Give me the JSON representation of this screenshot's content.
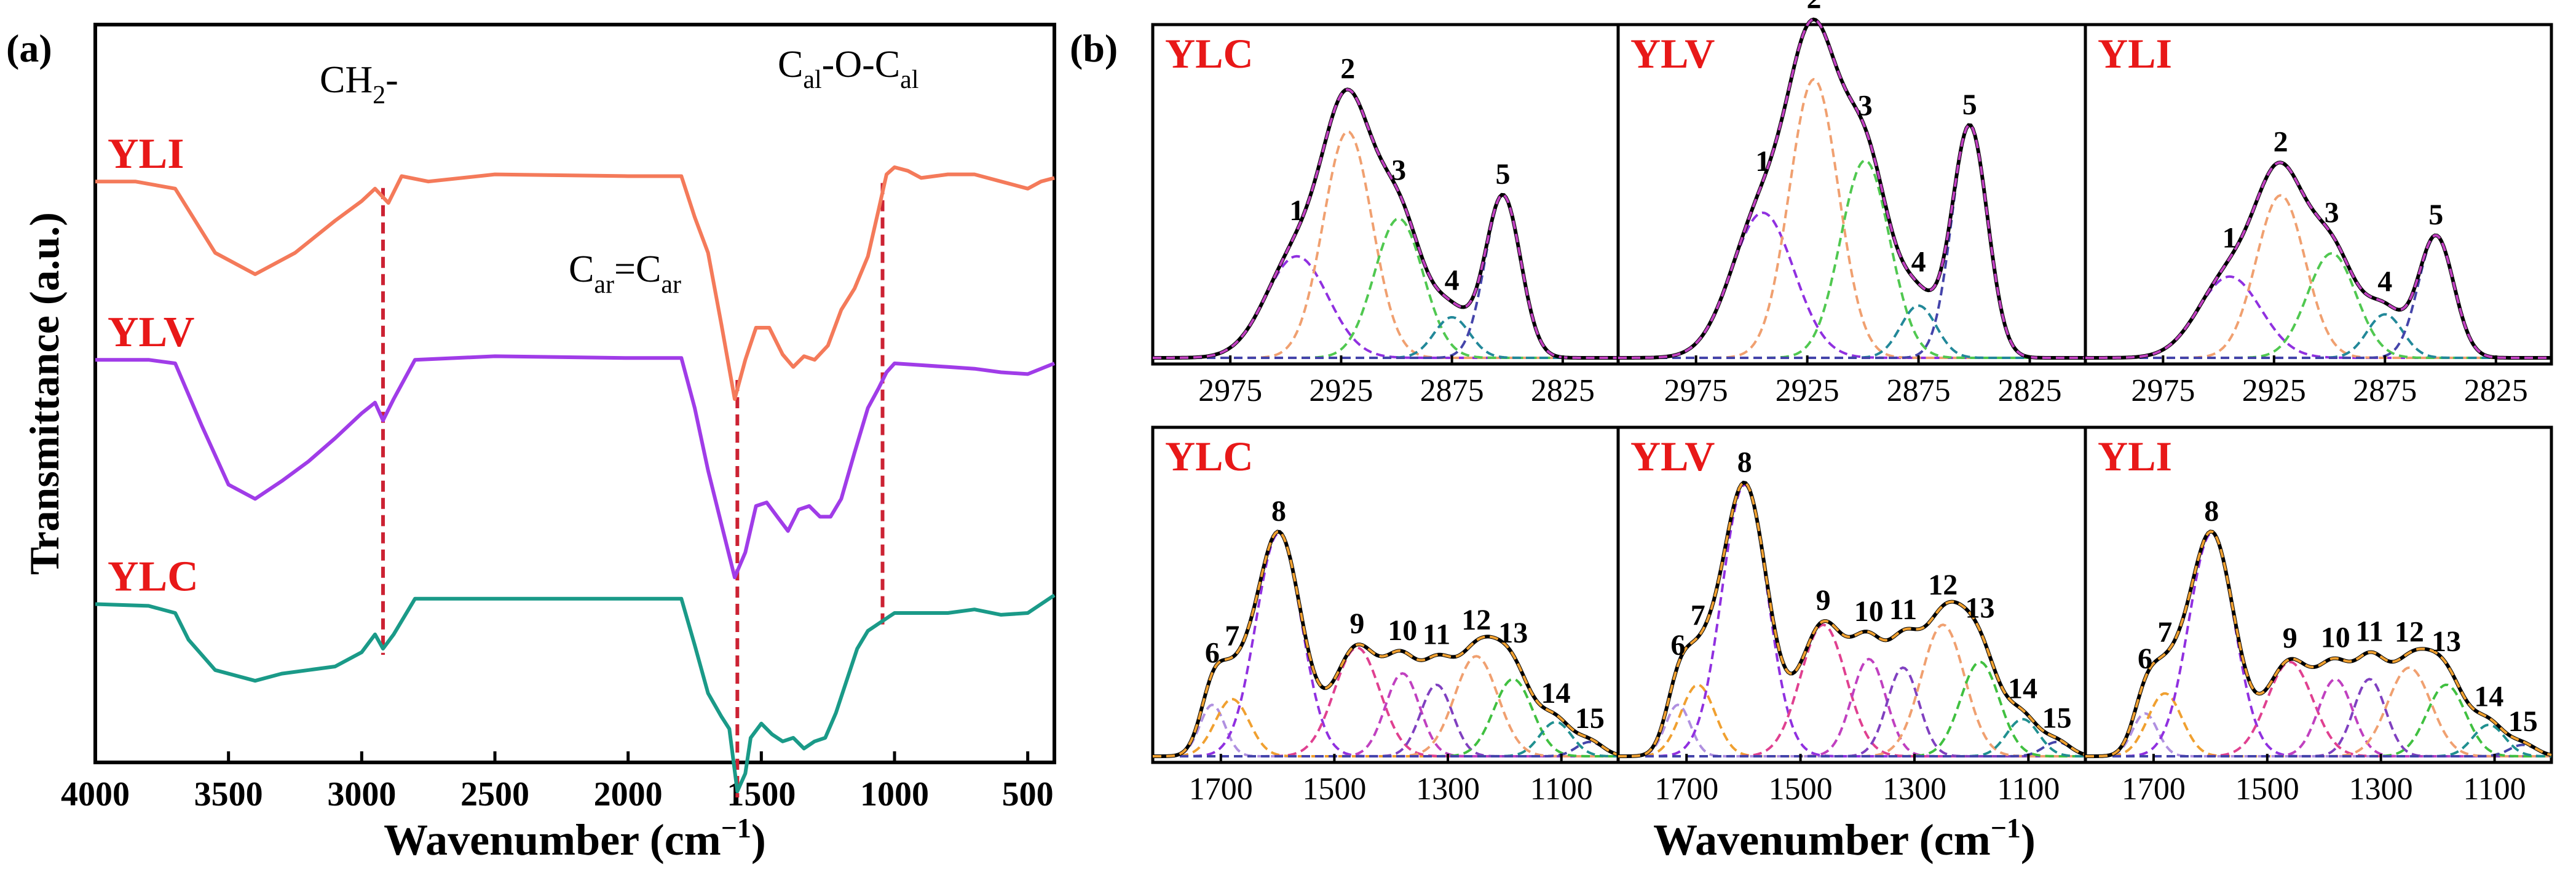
{
  "chart_data": [
    {
      "panel": "(a)",
      "type": "line",
      "xlabel_main": "Wavenumber (cm",
      "xlabel_sup": "−1",
      "xlabel_close": ")",
      "ylabel": "Transmittance (a.u.)",
      "xlim": [
        4000,
        400
      ],
      "xticks": [
        "4000",
        "3500",
        "3000",
        "2500",
        "2000",
        "1500",
        "1000",
        "500"
      ],
      "series": [
        {
          "name": "YLI",
          "color": "#f47a5a",
          "points": [
            [
              4000,
              88
            ],
            [
              3850,
              88
            ],
            [
              3700,
              92
            ],
            [
              3550,
              128
            ],
            [
              3400,
              140
            ],
            [
              3250,
              128
            ],
            [
              3100,
              110
            ],
            [
              3000,
              99
            ],
            [
              2950,
              92
            ],
            [
              2900,
              100
            ],
            [
              2850,
              85
            ],
            [
              2750,
              88
            ],
            [
              2500,
              84
            ],
            [
              2000,
              85
            ],
            [
              1800,
              85
            ],
            [
              1750,
              108
            ],
            [
              1700,
              128
            ],
            [
              1650,
              168
            ],
            [
              1600,
              210
            ],
            [
              1560,
              188
            ],
            [
              1520,
              170
            ],
            [
              1470,
              170
            ],
            [
              1420,
              185
            ],
            [
              1380,
              192
            ],
            [
              1340,
              186
            ],
            [
              1300,
              188
            ],
            [
              1250,
              180
            ],
            [
              1200,
              160
            ],
            [
              1150,
              148
            ],
            [
              1100,
              130
            ],
            [
              1060,
              104
            ],
            [
              1030,
              84
            ],
            [
              1000,
              80
            ],
            [
              950,
              82
            ],
            [
              900,
              86
            ],
            [
              800,
              84
            ],
            [
              700,
              84
            ],
            [
              600,
              88
            ],
            [
              500,
              92
            ],
            [
              450,
              88
            ],
            [
              400,
              86
            ]
          ]
        },
        {
          "name": "YLV",
          "color": "#a03ce8",
          "points": [
            [
              4000,
              188
            ],
            [
              3800,
              188
            ],
            [
              3700,
              190
            ],
            [
              3600,
              225
            ],
            [
              3500,
              258
            ],
            [
              3400,
              266
            ],
            [
              3300,
              256
            ],
            [
              3200,
              245
            ],
            [
              3100,
              232
            ],
            [
              3000,
              218
            ],
            [
              2950,
              212
            ],
            [
              2920,
              222
            ],
            [
              2880,
              210
            ],
            [
              2800,
              188
            ],
            [
              2500,
              186
            ],
            [
              2000,
              187
            ],
            [
              1800,
              187
            ],
            [
              1750,
              215
            ],
            [
              1700,
              250
            ],
            [
              1650,
              280
            ],
            [
              1600,
              310
            ],
            [
              1560,
              296
            ],
            [
              1520,
              270
            ],
            [
              1480,
              268
            ],
            [
              1440,
              276
            ],
            [
              1400,
              284
            ],
            [
              1360,
              272
            ],
            [
              1320,
              270
            ],
            [
              1280,
              276
            ],
            [
              1240,
              276
            ],
            [
              1200,
              266
            ],
            [
              1150,
              240
            ],
            [
              1100,
              215
            ],
            [
              1060,
              204
            ],
            [
              1030,
              195
            ],
            [
              1000,
              190
            ],
            [
              900,
              191
            ],
            [
              800,
              192
            ],
            [
              700,
              193
            ],
            [
              600,
              195
            ],
            [
              500,
              196
            ],
            [
              400,
              190
            ]
          ]
        },
        {
          "name": "YLC",
          "color": "#1a9a88",
          "points": [
            [
              4000,
              325
            ],
            [
              3800,
              326
            ],
            [
              3700,
              330
            ],
            [
              3650,
              345
            ],
            [
              3550,
              362
            ],
            [
              3400,
              368
            ],
            [
              3300,
              364
            ],
            [
              3200,
              362
            ],
            [
              3100,
              360
            ],
            [
              3000,
              352
            ],
            [
              2950,
              342
            ],
            [
              2920,
              350
            ],
            [
              2880,
              342
            ],
            [
              2800,
              322
            ],
            [
              2500,
              322
            ],
            [
              2000,
              322
            ],
            [
              1800,
              322
            ],
            [
              1750,
              348
            ],
            [
              1700,
              375
            ],
            [
              1650,
              388
            ],
            [
              1620,
              395
            ],
            [
              1590,
              430
            ],
            [
              1560,
              420
            ],
            [
              1540,
              400
            ],
            [
              1500,
              392
            ],
            [
              1460,
              398
            ],
            [
              1420,
              402
            ],
            [
              1380,
              400
            ],
            [
              1340,
              406
            ],
            [
              1300,
              402
            ],
            [
              1260,
              400
            ],
            [
              1220,
              386
            ],
            [
              1180,
              368
            ],
            [
              1140,
              350
            ],
            [
              1100,
              340
            ],
            [
              1060,
              336
            ],
            [
              1020,
              332
            ],
            [
              1000,
              330
            ],
            [
              900,
              330
            ],
            [
              800,
              330
            ],
            [
              700,
              328
            ],
            [
              600,
              331
            ],
            [
              500,
              330
            ],
            [
              400,
              320
            ]
          ]
        }
      ],
      "markers": [
        {
          "label": "CH2-",
          "x": 2920,
          "color": "#cc2233"
        },
        {
          "label": "Car=Car",
          "x": 1590,
          "color": "#cc2233"
        },
        {
          "label": "Cal-O-Cal",
          "x": 1045,
          "color": "#cc2233"
        }
      ],
      "annotations": {
        "ch2_main": "CH",
        "ch2_sub": "2",
        "ch2_tail": "-",
        "carc_c1": "C",
        "carc_sub1": "ar",
        "carc_eq": "=C",
        "carc_sub2": "ar",
        "calo_c1": "C",
        "calo_sub1": "al",
        "calo_mid": "-O-C",
        "calo_sub2": "al"
      }
    },
    {
      "panel": "(b)",
      "type": "line",
      "description_of_rows": "top row 3000-2800 cm-1 region; bottom row 1800-1000 cm-1 region",
      "xlabel_main": "Wavenumber (cm",
      "xlabel_sup": "−1",
      "xlabel_close": ")",
      "top_xticks": [
        "2975",
        "2925",
        "2875",
        "2825"
      ],
      "top_xlim": [
        3010,
        2800
      ],
      "bottom_xticks": [
        "1700",
        "1500",
        "1300",
        "1100"
      ],
      "bottom_xlim": [
        1820,
        1000
      ],
      "fit_components_top": [
        {
          "name": "1",
          "center": 2945,
          "color": "#9030e0"
        },
        {
          "name": "2",
          "center": 2922,
          "color": "#f0a070"
        },
        {
          "name": "3",
          "center": 2899,
          "color": "#50c850"
        },
        {
          "name": "4",
          "center": 2875,
          "color": "#228899"
        },
        {
          "name": "5",
          "center": 2852,
          "color": "#4444aa"
        }
      ],
      "fit_components_bottom": [
        {
          "name": "6",
          "center": 1715,
          "color": "#b090e0"
        },
        {
          "name": "7",
          "center": 1680,
          "color": "#f0a030"
        },
        {
          "name": "8",
          "center": 1598,
          "color": "#9030e0"
        },
        {
          "name": "9",
          "center": 1460,
          "color": "#e04090"
        },
        {
          "name": "10",
          "center": 1380,
          "color": "#c040c0"
        },
        {
          "name": "11",
          "center": 1320,
          "color": "#8040c0"
        },
        {
          "name": "12",
          "center": 1250,
          "color": "#f0a070"
        },
        {
          "name": "13",
          "center": 1185,
          "color": "#40c040"
        },
        {
          "name": "14",
          "center": 1110,
          "color": "#209090"
        },
        {
          "name": "15",
          "center": 1050,
          "color": "#4444aa"
        }
      ],
      "subplots": [
        {
          "row": "top",
          "title": "YLC",
          "amplitudes": [
            0.35,
            0.78,
            0.48,
            0.14,
            0.56
          ],
          "peak_labels": [
            "1",
            "2",
            "3",
            "4",
            "5"
          ]
        },
        {
          "row": "top",
          "title": "YLV",
          "amplitudes": [
            0.5,
            0.96,
            0.68,
            0.18,
            0.8
          ],
          "peak_labels": [
            "1",
            "2",
            "3",
            "4",
            "5"
          ]
        },
        {
          "row": "top",
          "title": "YLI",
          "amplitudes": [
            0.28,
            0.56,
            0.36,
            0.15,
            0.42
          ],
          "peak_labels": [
            "1",
            "2",
            "3",
            "4",
            "5"
          ]
        },
        {
          "row": "bottom",
          "title": "YLC",
          "amplitudes": [
            0.18,
            0.2,
            0.78,
            0.38,
            0.29,
            0.25,
            0.35,
            0.27,
            0.12,
            0.05
          ],
          "peak_labels": [
            "6",
            "7",
            "8",
            "9",
            "10",
            "11",
            "12",
            "13",
            "14",
            "15"
          ]
        },
        {
          "row": "bottom",
          "title": "YLV",
          "amplitudes": [
            0.18,
            0.25,
            0.95,
            0.46,
            0.34,
            0.31,
            0.46,
            0.33,
            0.13,
            0.05
          ],
          "peak_labels": [
            "6",
            "7",
            "8",
            "9",
            "10",
            "11",
            "12",
            "13",
            "14",
            "15"
          ]
        },
        {
          "row": "bottom",
          "title": "YLI",
          "amplitudes": [
            0.15,
            0.22,
            0.78,
            0.33,
            0.27,
            0.27,
            0.31,
            0.25,
            0.11,
            0.04
          ],
          "peak_labels": [
            "6",
            "7",
            "8",
            "9",
            "10",
            "11",
            "12",
            "13",
            "14",
            "15"
          ]
        }
      ]
    }
  ]
}
